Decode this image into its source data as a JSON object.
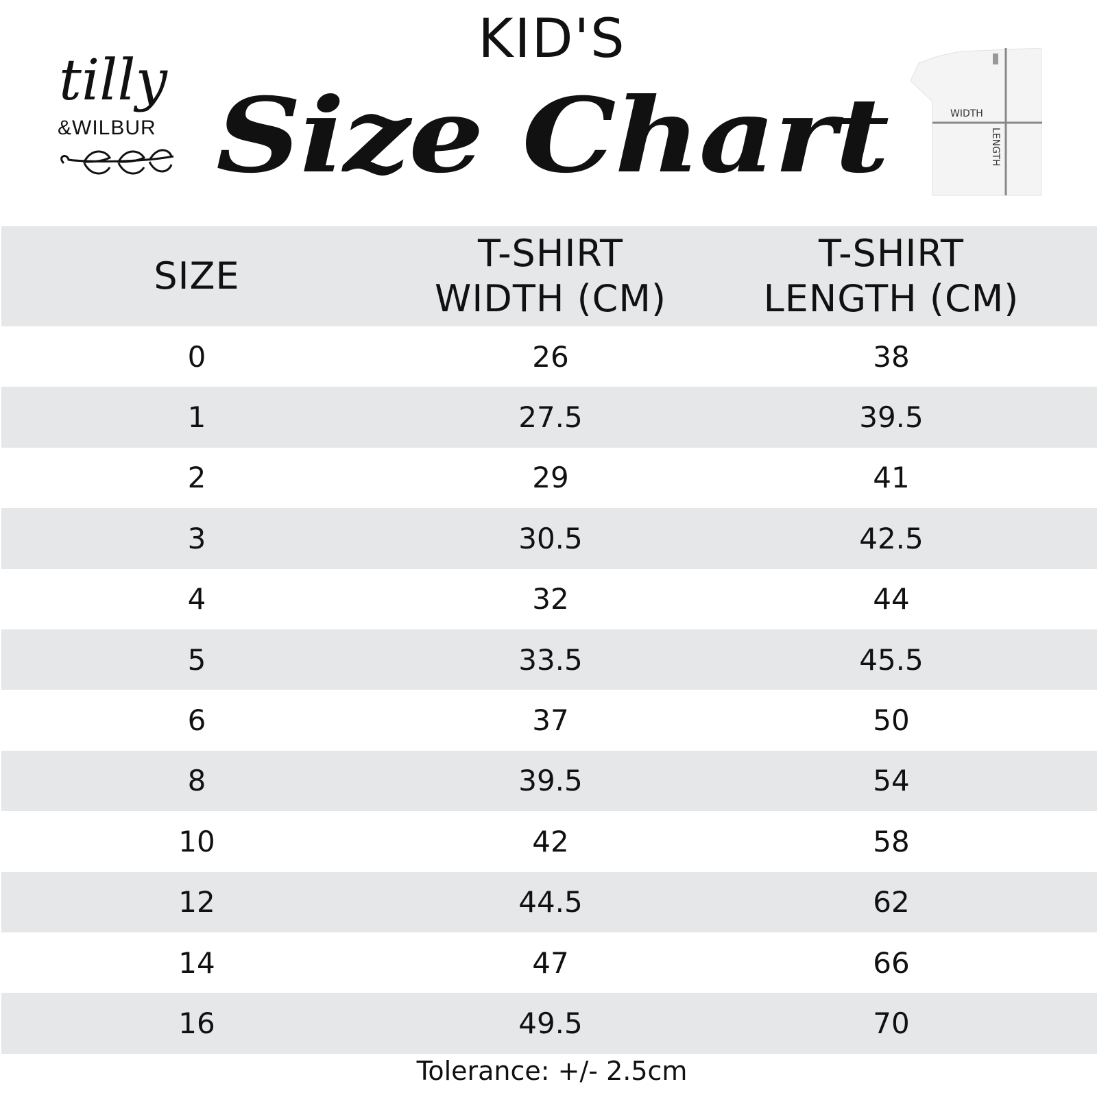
{
  "header": {
    "kicker": "KID'S",
    "title": "Size Chart"
  },
  "logo": {
    "line1": "tilly",
    "line2": "&WILBUR"
  },
  "diagram": {
    "width_label": "WIDTH",
    "length_label": "LENGTH"
  },
  "table": {
    "columns": [
      "SIZE",
      "T-SHIRT\nWIDTH (CM)",
      "T-SHIRT\nLENGTH (CM)"
    ],
    "rows": [
      [
        "0",
        "26",
        "38"
      ],
      [
        "1",
        "27.5",
        "39.5"
      ],
      [
        "2",
        "29",
        "41"
      ],
      [
        "3",
        "30.5",
        "42.5"
      ],
      [
        "4",
        "32",
        "44"
      ],
      [
        "5",
        "33.5",
        "45.5"
      ],
      [
        "6",
        "37",
        "50"
      ],
      [
        "8",
        "39.5",
        "54"
      ],
      [
        "10",
        "42",
        "58"
      ],
      [
        "12",
        "44.5",
        "62"
      ],
      [
        "14",
        "47",
        "66"
      ],
      [
        "16",
        "49.5",
        "70"
      ]
    ]
  },
  "footer": {
    "tolerance": "Tolerance: +/- 2.5cm"
  },
  "colors": {
    "row_alt": "#e6e7e9",
    "text": "#111111"
  }
}
